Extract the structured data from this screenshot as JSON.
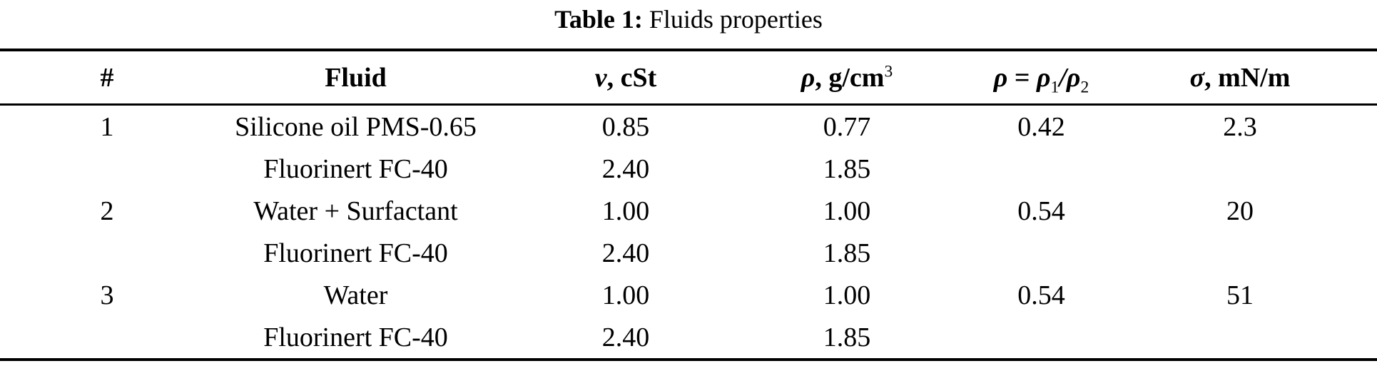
{
  "caption": {
    "label": "Table 1:",
    "title": "Fluids properties"
  },
  "table": {
    "headers": [
      {
        "name": "number",
        "segments": [
          [
            "bold",
            "#"
          ]
        ]
      },
      {
        "name": "fluid",
        "segments": [
          [
            "bold",
            "Fluid"
          ]
        ]
      },
      {
        "name": "viscosity",
        "segments": [
          [
            "greek",
            "ν"
          ],
          [
            "bold",
            ", cSt"
          ]
        ]
      },
      {
        "name": "density",
        "segments": [
          [
            "greek",
            "ρ"
          ],
          [
            "bold",
            ", g/cm"
          ],
          [
            "sup",
            "3"
          ]
        ]
      },
      {
        "name": "density-ratio",
        "segments": [
          [
            "greek",
            "ρ"
          ],
          [
            "bold",
            " = "
          ],
          [
            "greek",
            "ρ"
          ],
          [
            "sub",
            "1"
          ],
          [
            "greek",
            "/"
          ],
          [
            "greek",
            "ρ"
          ],
          [
            "sub",
            "2"
          ]
        ]
      },
      {
        "name": "surface-tension",
        "segments": [
          [
            "greek",
            "σ"
          ],
          [
            "bold",
            ", mN/m"
          ]
        ]
      }
    ],
    "rows": [
      [
        "1",
        "Silicone oil PMS-0.65",
        "0.85",
        "0.77",
        "0.42",
        "2.3"
      ],
      [
        "",
        "Fluorinert FC-40",
        "2.40",
        "1.85",
        "",
        ""
      ],
      [
        "2",
        "Water + Surfactant",
        "1.00",
        "1.00",
        "0.54",
        "20"
      ],
      [
        "",
        "Fluorinert FC-40",
        "2.40",
        "1.85",
        "",
        ""
      ],
      [
        "3",
        "Water",
        "1.00",
        "1.00",
        "0.54",
        "51"
      ],
      [
        "",
        "Fluorinert FC-40",
        "2.40",
        "1.85",
        "",
        ""
      ]
    ]
  }
}
